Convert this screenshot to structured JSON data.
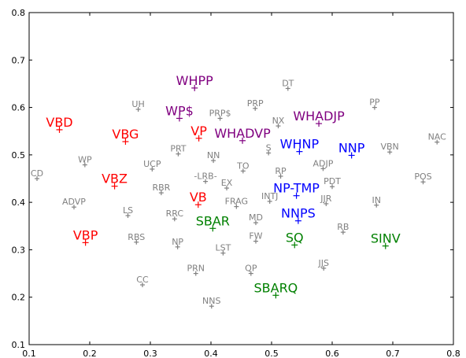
{
  "chart_data": {
    "type": "scatter",
    "xlim": [
      0.1,
      0.8
    ],
    "ylim": [
      0.1,
      0.8
    ],
    "x_ticks": [
      "0.1",
      "0.2",
      "0.3",
      "0.4",
      "0.5",
      "0.6",
      "0.7",
      "0.8"
    ],
    "y_ticks": [
      "0.1",
      "0.2",
      "0.3",
      "0.4",
      "0.5",
      "0.6",
      "0.7",
      "0.8"
    ],
    "grid": false,
    "colors": {
      "gray": "#808080",
      "red": "#ff0000",
      "purple": "#800080",
      "blue": "#0000ff",
      "green": "#008000"
    },
    "points": [
      {
        "label": "WHPP",
        "x": 0.373,
        "y": 0.641,
        "color": "purple",
        "size": "large"
      },
      {
        "label": "WP$",
        "x": 0.348,
        "y": 0.577,
        "color": "purple",
        "size": "large"
      },
      {
        "label": "WHADVP",
        "x": 0.452,
        "y": 0.53,
        "color": "purple",
        "size": "large"
      },
      {
        "label": "WHADJP",
        "x": 0.578,
        "y": 0.566,
        "color": "purple",
        "size": "large"
      },
      {
        "label": "VBD",
        "x": 0.15,
        "y": 0.553,
        "color": "red",
        "size": "large"
      },
      {
        "label": "VBG",
        "x": 0.259,
        "y": 0.528,
        "color": "red",
        "size": "large"
      },
      {
        "label": "VP",
        "x": 0.38,
        "y": 0.535,
        "color": "red",
        "size": "large"
      },
      {
        "label": "VBZ",
        "x": 0.241,
        "y": 0.434,
        "color": "red",
        "size": "large"
      },
      {
        "label": "VB",
        "x": 0.379,
        "y": 0.395,
        "color": "red",
        "size": "large"
      },
      {
        "label": "VBP",
        "x": 0.193,
        "y": 0.315,
        "color": "red",
        "size": "large"
      },
      {
        "label": "WHNP",
        "x": 0.546,
        "y": 0.507,
        "color": "blue",
        "size": "large"
      },
      {
        "label": "NNP",
        "x": 0.632,
        "y": 0.499,
        "color": "blue",
        "size": "large"
      },
      {
        "label": "NP-TMP",
        "x": 0.541,
        "y": 0.414,
        "color": "blue",
        "size": "large"
      },
      {
        "label": "NNPS",
        "x": 0.544,
        "y": 0.361,
        "color": "blue",
        "size": "large"
      },
      {
        "label": "SBAR",
        "x": 0.403,
        "y": 0.345,
        "color": "green",
        "size": "large"
      },
      {
        "label": "SQ",
        "x": 0.538,
        "y": 0.31,
        "color": "green",
        "size": "large"
      },
      {
        "label": "SINV",
        "x": 0.688,
        "y": 0.308,
        "color": "green",
        "size": "large"
      },
      {
        "label": "SBARQ",
        "x": 0.507,
        "y": 0.204,
        "color": "green",
        "size": "large"
      },
      {
        "label": "DT",
        "x": 0.527,
        "y": 0.64,
        "color": "gray",
        "size": "small"
      },
      {
        "label": "UH",
        "x": 0.28,
        "y": 0.596,
        "color": "gray",
        "size": "small"
      },
      {
        "label": "PRP",
        "x": 0.473,
        "y": 0.598,
        "color": "gray",
        "size": "small"
      },
      {
        "label": "PP",
        "x": 0.67,
        "y": 0.6,
        "color": "gray",
        "size": "small"
      },
      {
        "label": "PRP$",
        "x": 0.415,
        "y": 0.577,
        "color": "gray",
        "size": "small"
      },
      {
        "label": "NX",
        "x": 0.511,
        "y": 0.561,
        "color": "gray",
        "size": "small"
      },
      {
        "label": "NAC",
        "x": 0.773,
        "y": 0.527,
        "color": "gray",
        "size": "small"
      },
      {
        "label": "VBN",
        "x": 0.695,
        "y": 0.506,
        "color": "gray",
        "size": "small"
      },
      {
        "label": "S",
        "x": 0.495,
        "y": 0.504,
        "color": "gray",
        "size": "small"
      },
      {
        "label": "PRT",
        "x": 0.346,
        "y": 0.502,
        "color": "gray",
        "size": "small"
      },
      {
        "label": "NN",
        "x": 0.404,
        "y": 0.488,
        "color": "gray",
        "size": "small"
      },
      {
        "label": "WP",
        "x": 0.192,
        "y": 0.479,
        "color": "gray",
        "size": "small"
      },
      {
        "label": "UCP",
        "x": 0.303,
        "y": 0.47,
        "color": "gray",
        "size": "small"
      },
      {
        "label": "TO",
        "x": 0.453,
        "y": 0.466,
        "color": "gray",
        "size": "small"
      },
      {
        "label": "ADJP",
        "x": 0.585,
        "y": 0.471,
        "color": "gray",
        "size": "small"
      },
      {
        "label": "RP",
        "x": 0.515,
        "y": 0.455,
        "color": "gray",
        "size": "small"
      },
      {
        "label": "CD",
        "x": 0.113,
        "y": 0.45,
        "color": "gray",
        "size": "small"
      },
      {
        "label": "-LRB-",
        "x": 0.391,
        "y": 0.444,
        "color": "gray",
        "size": "small"
      },
      {
        "label": "POS",
        "x": 0.75,
        "y": 0.443,
        "color": "gray",
        "size": "small"
      },
      {
        "label": "PDT",
        "x": 0.6,
        "y": 0.433,
        "color": "gray",
        "size": "small"
      },
      {
        "label": "EX",
        "x": 0.426,
        "y": 0.43,
        "color": "gray",
        "size": "small"
      },
      {
        "label": "RBR",
        "x": 0.318,
        "y": 0.42,
        "color": "gray",
        "size": "small"
      },
      {
        "label": "INTJ",
        "x": 0.497,
        "y": 0.402,
        "color": "gray",
        "size": "small"
      },
      {
        "label": "JJR",
        "x": 0.59,
        "y": 0.397,
        "color": "gray",
        "size": "small"
      },
      {
        "label": "IN",
        "x": 0.673,
        "y": 0.394,
        "color": "gray",
        "size": "small"
      },
      {
        "label": "FRAG",
        "x": 0.442,
        "y": 0.391,
        "color": "gray",
        "size": "small"
      },
      {
        "label": "ADVP",
        "x": 0.174,
        "y": 0.39,
        "color": "gray",
        "size": "small"
      },
      {
        "label": "LS",
        "x": 0.263,
        "y": 0.372,
        "color": "gray",
        "size": "small"
      },
      {
        "label": "RRC",
        "x": 0.34,
        "y": 0.365,
        "color": "gray",
        "size": "small"
      },
      {
        "label": "MD",
        "x": 0.474,
        "y": 0.357,
        "color": "gray",
        "size": "small"
      },
      {
        "label": "RB",
        "x": 0.618,
        "y": 0.337,
        "color": "gray",
        "size": "small"
      },
      {
        "label": "FW",
        "x": 0.474,
        "y": 0.318,
        "color": "gray",
        "size": "small"
      },
      {
        "label": "RBS",
        "x": 0.277,
        "y": 0.316,
        "color": "gray",
        "size": "small"
      },
      {
        "label": "NP",
        "x": 0.345,
        "y": 0.306,
        "color": "gray",
        "size": "small"
      },
      {
        "label": "LST",
        "x": 0.42,
        "y": 0.293,
        "color": "gray",
        "size": "small"
      },
      {
        "label": "JJS",
        "x": 0.586,
        "y": 0.261,
        "color": "gray",
        "size": "small"
      },
      {
        "label": "PRN",
        "x": 0.375,
        "y": 0.25,
        "color": "gray",
        "size": "small"
      },
      {
        "label": "QP",
        "x": 0.466,
        "y": 0.25,
        "color": "gray",
        "size": "small"
      },
      {
        "label": "CC",
        "x": 0.287,
        "y": 0.226,
        "color": "gray",
        "size": "small"
      },
      {
        "label": "NNS",
        "x": 0.401,
        "y": 0.181,
        "color": "gray",
        "size": "small"
      }
    ]
  }
}
